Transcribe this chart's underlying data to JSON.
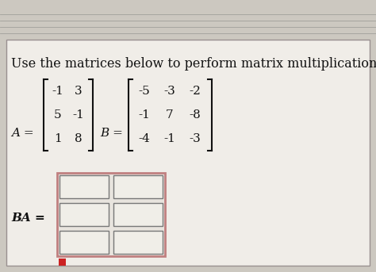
{
  "title": "Use the matrices below to perform matrix multiplication.",
  "title_fontsize": 11.5,
  "A_label": "A =",
  "B_label": "B =",
  "BA_label": "BA =",
  "A_matrix": [
    [
      -1,
      3
    ],
    [
      5,
      -1
    ],
    [
      1,
      8
    ]
  ],
  "B_matrix": [
    [
      -5,
      -3,
      -2
    ],
    [
      -1,
      7,
      -8
    ],
    [
      -4,
      -1,
      -3
    ]
  ],
  "bg_color": "#ccc8c0",
  "card_color": "#e8e4de",
  "box_bg": "#e8e4de",
  "cell_bg": "#f0eee8",
  "text_color": "#111111",
  "bracket_color": "#111111",
  "grid_rows": 3,
  "grid_cols": 2,
  "line_colors": [
    "#b0aca6",
    "#b0aca6",
    "#b0aca6",
    "#b0aca6"
  ],
  "outer_border_color": "#c08080",
  "inner_grid_color": "#888888"
}
